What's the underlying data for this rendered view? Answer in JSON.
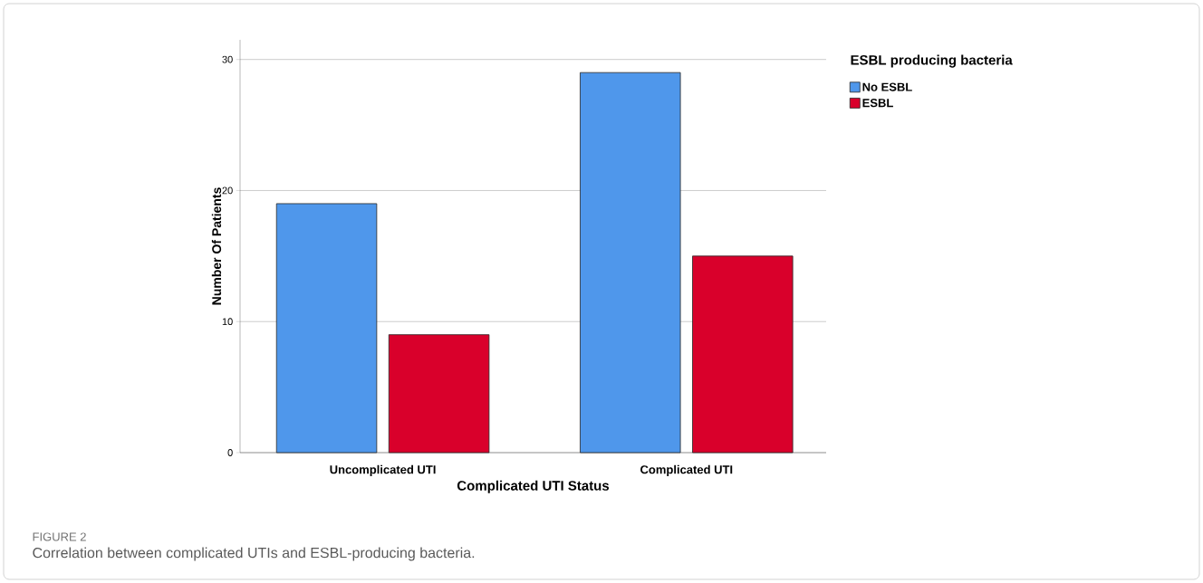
{
  "chart_data": {
    "type": "bar",
    "xlabel": "Complicated UTI Status",
    "ylabel": "Number Of Patients",
    "legend_title": "ESBL producing bacteria",
    "categories": [
      "Uncomplicated UTI",
      "Complicated UTI"
    ],
    "series": [
      {
        "name": "No ESBL",
        "color": "#4f97eb",
        "values": [
          19,
          29
        ]
      },
      {
        "name": "ESBL",
        "color": "#d9002b",
        "values": [
          9,
          15
        ]
      }
    ],
    "ylim": [
      0,
      31.5
    ],
    "yticks": [
      0,
      10,
      20,
      30
    ],
    "grid": "y",
    "legend": "top right",
    "annotations": [
      "FIGURE 2",
      "Correlation between complicated UTIs and ESBL-producing bacteria."
    ]
  }
}
